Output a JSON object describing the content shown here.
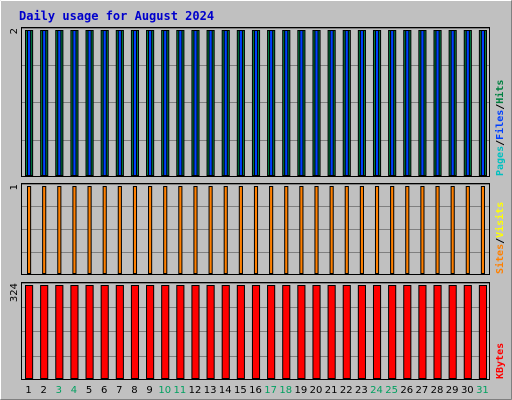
{
  "chart_data": {
    "type": "bar",
    "title": "Daily usage for August 2024",
    "days": [
      "1",
      "2",
      "3",
      "4",
      "5",
      "6",
      "7",
      "8",
      "9",
      "10",
      "11",
      "12",
      "13",
      "14",
      "15",
      "16",
      "17",
      "18",
      "19",
      "20",
      "21",
      "22",
      "23",
      "24",
      "25",
      "26",
      "27",
      "28",
      "29",
      "30",
      "31"
    ],
    "weekend_days": [
      "3",
      "4",
      "10",
      "11",
      "17",
      "18",
      "24",
      "25",
      "31"
    ],
    "panels": [
      {
        "name": "pages-files-hits",
        "ymax_label": "2",
        "ymax": 2,
        "legend": [
          {
            "text": "Pages",
            "color": "#00c0c0"
          },
          {
            "text": "/",
            "color": "#000000"
          },
          {
            "text": "Files",
            "color": "#0040ff"
          },
          {
            "text": "/",
            "color": "#000000"
          },
          {
            "text": "Hits",
            "color": "#008040"
          }
        ],
        "series": [
          {
            "name": "Hits",
            "color": "#008040",
            "values": [
              2,
              2,
              2,
              2,
              2,
              2,
              2,
              2,
              2,
              2,
              2,
              2,
              2,
              2,
              2,
              2,
              2,
              2,
              2,
              2,
              2,
              2,
              2,
              2,
              2,
              2,
              2,
              2,
              2,
              2,
              2
            ]
          },
          {
            "name": "Files",
            "color": "#0040ff",
            "values": [
              2,
              2,
              2,
              2,
              2,
              2,
              2,
              2,
              2,
              2,
              2,
              2,
              2,
              2,
              2,
              2,
              2,
              2,
              2,
              2,
              2,
              2,
              2,
              2,
              2,
              2,
              2,
              2,
              2,
              2,
              2
            ]
          },
          {
            "name": "Pages",
            "color": "#00c0c0",
            "values": [
              0,
              0,
              0,
              0,
              0,
              0,
              0,
              0,
              0,
              0,
              0,
              0,
              0,
              0,
              0,
              0,
              0,
              0,
              0,
              0,
              0,
              0,
              0,
              0,
              0,
              0,
              0,
              0,
              0,
              0,
              0
            ]
          }
        ]
      },
      {
        "name": "sites-visits",
        "ymax_label": "1",
        "ymax": 1,
        "legend": [
          {
            "text": "Sites",
            "color": "#ff8000"
          },
          {
            "text": "/",
            "color": "#000000"
          },
          {
            "text": "Visits",
            "color": "#ffff00"
          }
        ],
        "series": [
          {
            "name": "Visits",
            "color": "#ffff00",
            "values": [
              0,
              0,
              0,
              0,
              0,
              0,
              0,
              0,
              0,
              0,
              0,
              0,
              0,
              0,
              0,
              0,
              0,
              0,
              0,
              0,
              0,
              0,
              0,
              0,
              0,
              0,
              0,
              0,
              0,
              0,
              0
            ]
          },
          {
            "name": "Sites",
            "color": "#ff8000",
            "values": [
              1,
              1,
              1,
              1,
              1,
              1,
              1,
              1,
              1,
              1,
              1,
              1,
              1,
              1,
              1,
              1,
              1,
              1,
              1,
              1,
              1,
              1,
              1,
              1,
              1,
              1,
              1,
              1,
              1,
              1,
              1
            ]
          }
        ]
      },
      {
        "name": "kbytes",
        "ymax_label": "324",
        "ymax": 324,
        "legend": [
          {
            "text": "KBytes",
            "color": "#ff0000"
          }
        ],
        "series": [
          {
            "name": "KBytes",
            "color": "#ff0000",
            "values": [
              324,
              324,
              324,
              324,
              324,
              324,
              324,
              324,
              324,
              324,
              324,
              324,
              324,
              324,
              324,
              324,
              324,
              324,
              324,
              324,
              324,
              324,
              324,
              324,
              324,
              324,
              324,
              324,
              324,
              324,
              324
            ]
          }
        ]
      }
    ],
    "colors": {
      "background": "#c0c0c0",
      "plot_background": "#c0c0c0",
      "gridline": "#808080",
      "weekday_label": "#000000",
      "weekend_label": "#00a060"
    }
  }
}
